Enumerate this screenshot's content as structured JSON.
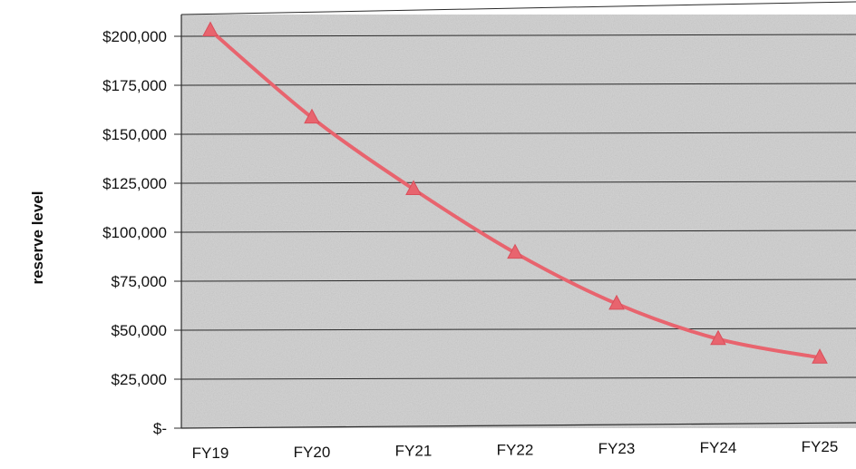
{
  "chart_data": {
    "type": "line",
    "categories": [
      "FY19",
      "FY20",
      "FY21",
      "FY22",
      "FY23",
      "FY24",
      "FY25"
    ],
    "series": [
      {
        "values": [
          203000,
          158500,
          122000,
          89500,
          63500,
          45500,
          36000
        ]
      }
    ],
    "xlabel": "",
    "ylabel": "reserve level",
    "ylim": [
      0,
      200000
    ],
    "y_ticks": [
      {
        "value": 200000,
        "label": "$200,000"
      },
      {
        "value": 175000,
        "label": "$175,000"
      },
      {
        "value": 150000,
        "label": "$150,000"
      },
      {
        "value": 125000,
        "label": "$125,000"
      },
      {
        "value": 100000,
        "label": "$100,000"
      },
      {
        "value": 75000,
        "label": "$75,000"
      },
      {
        "value": 50000,
        "label": "$50,000"
      },
      {
        "value": 25000,
        "label": "$25,000"
      },
      {
        "value": 0,
        "label": "$-"
      }
    ],
    "grid": true,
    "line_color": "#e8646e",
    "marker": "triangle",
    "plot_background": "#d4d4d4"
  }
}
